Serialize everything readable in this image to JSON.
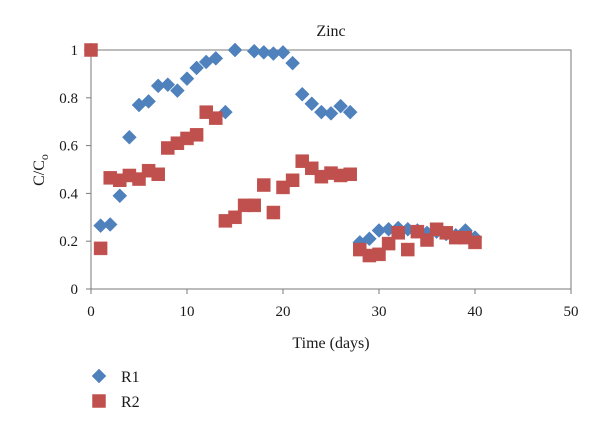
{
  "chart_data": {
    "type": "scatter",
    "title": "Zinc",
    "xlabel": "Time (days)",
    "ylabel": "C/C",
    "ylabel_subscript": "o",
    "xlim": [
      0,
      50
    ],
    "ylim": [
      0,
      1
    ],
    "xticks": [
      0,
      10,
      20,
      30,
      40,
      50
    ],
    "xtick_labels": [
      "0",
      "10",
      "20",
      "30",
      "40",
      "50"
    ],
    "yticks": [
      0,
      0.2,
      0.4,
      0.6,
      0.8,
      1
    ],
    "ytick_labels": [
      "0",
      "0.2",
      "0.4",
      "0.6",
      "0.8",
      "1"
    ],
    "grid": false,
    "legend_position": "bottom-left",
    "series": [
      {
        "name": "R1",
        "marker": "diamond",
        "color": "#4f81bd",
        "x": [
          0,
          1,
          2,
          3,
          4,
          5,
          6,
          7,
          8,
          9,
          10,
          11,
          12,
          13,
          14,
          15,
          17,
          18,
          19,
          20,
          21,
          22,
          23,
          24,
          25,
          26,
          27,
          28,
          29,
          30,
          31,
          32,
          33,
          34,
          35,
          36,
          37,
          38,
          39,
          40
        ],
        "y": [
          1.0,
          0.265,
          0.27,
          0.39,
          0.635,
          0.77,
          0.785,
          0.85,
          0.855,
          0.83,
          0.88,
          0.925,
          0.95,
          0.965,
          0.74,
          1.0,
          0.995,
          0.99,
          0.985,
          0.99,
          0.945,
          0.815,
          0.775,
          0.74,
          0.735,
          0.765,
          0.74,
          0.195,
          0.21,
          0.245,
          0.25,
          0.255,
          0.25,
          0.245,
          0.235,
          0.24,
          0.23,
          0.225,
          0.245,
          0.215
        ]
      },
      {
        "name": "R2",
        "marker": "square",
        "color": "#c0504d",
        "x": [
          0,
          1,
          2,
          3,
          4,
          5,
          6,
          7,
          8,
          9,
          10,
          11,
          12,
          13,
          14,
          15,
          16,
          17,
          18,
          19,
          20,
          21,
          22,
          23,
          24,
          25,
          26,
          27,
          28,
          29,
          30,
          31,
          32,
          33,
          34,
          35,
          36,
          37,
          38,
          39,
          40
        ],
        "y": [
          1.0,
          0.17,
          0.465,
          0.455,
          0.475,
          0.46,
          0.495,
          0.48,
          0.59,
          0.61,
          0.63,
          0.645,
          0.74,
          0.715,
          0.285,
          0.3,
          0.35,
          0.35,
          0.435,
          0.32,
          0.425,
          0.455,
          0.535,
          0.505,
          0.47,
          0.485,
          0.475,
          0.48,
          0.165,
          0.14,
          0.145,
          0.19,
          0.235,
          0.165,
          0.24,
          0.205,
          0.25,
          0.235,
          0.215,
          0.215,
          0.195
        ]
      }
    ]
  }
}
